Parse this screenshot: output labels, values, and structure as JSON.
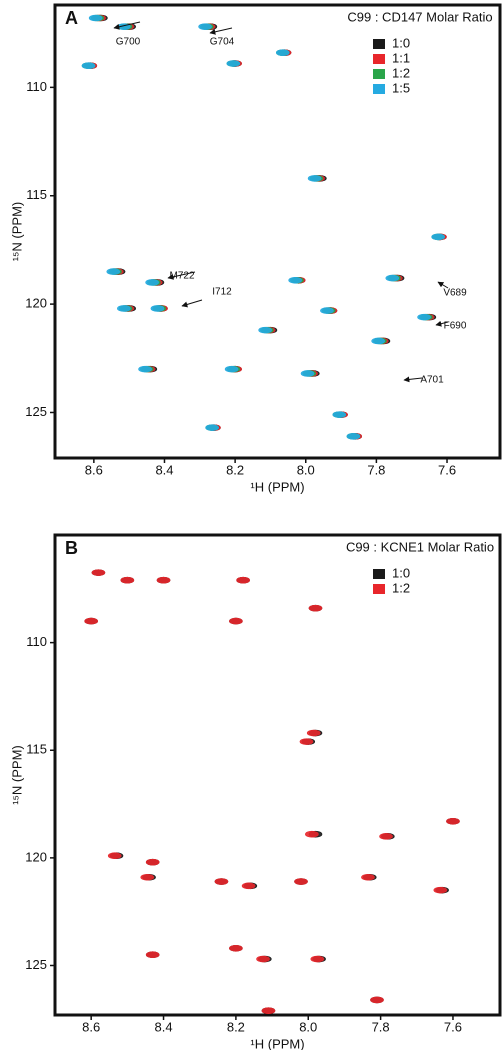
{
  "chart_data": [
    {
      "type": "scatter",
      "panel": "A",
      "legend_title": "C99 : CD147 Molar Ratio",
      "x_label": "¹H (PPM)",
      "y_label": "¹⁵N (PPM)",
      "x_reversed": true,
      "y_reversed": true,
      "xlim": [
        7.45,
        8.71
      ],
      "ylim": [
        106.2,
        127.1
      ],
      "xticks": [
        8.6,
        8.4,
        8.2,
        {
          "value": 8,
          "label": "8.0"
        },
        7.8,
        7.6
      ],
      "yticks": [
        110,
        115,
        120,
        125
      ],
      "annotations": [
        "G700",
        "G704",
        "M722",
        "I712",
        "V689",
        "F690",
        "A701"
      ],
      "series": [
        {
          "name": "1:0",
          "color": "#1a1a1a",
          "x": [
            8.58,
            8.5,
            8.27,
            8.2,
            8.61,
            8.06,
            7.96,
            7.62,
            8.53,
            8.42,
            8.5,
            8.41,
            8.44,
            8.2,
            7.98,
            8.26,
            7.9,
            7.86,
            8.02,
            7.74,
            7.65,
            7.78,
            7.93,
            8.1
          ],
          "y": [
            106.8,
            107.2,
            107.2,
            108.9,
            109.0,
            108.4,
            114.2,
            116.9,
            118.5,
            119.0,
            120.2,
            120.2,
            123.0,
            123.0,
            123.2,
            125.7,
            125.1,
            126.1,
            118.9,
            118.8,
            120.6,
            121.7,
            120.3,
            121.2
          ]
        },
        {
          "name": "1:1",
          "color": "#e8262b",
          "x": [
            8.585,
            8.505,
            8.275,
            8.2,
            8.61,
            8.06,
            7.965,
            7.62,
            8.535,
            8.425,
            8.505,
            8.41,
            8.445,
            8.2,
            7.985,
            8.26,
            7.9,
            7.86,
            8.02,
            7.745,
            7.655,
            7.785,
            7.93,
            8.105
          ],
          "y": [
            106.8,
            107.2,
            107.2,
            108.9,
            109.0,
            108.4,
            114.2,
            116.9,
            118.5,
            119.0,
            120.2,
            120.2,
            123.0,
            123.0,
            123.2,
            125.7,
            125.1,
            126.1,
            118.9,
            118.8,
            120.6,
            121.7,
            120.3,
            121.2
          ]
        },
        {
          "name": "1:2",
          "color": "#2aa54a",
          "x": [
            8.59,
            8.51,
            8.28,
            8.205,
            8.615,
            8.065,
            7.97,
            7.625,
            8.54,
            8.43,
            8.51,
            8.415,
            8.45,
            8.205,
            7.99,
            8.265,
            7.905,
            7.865,
            8.025,
            7.75,
            7.66,
            7.79,
            7.935,
            8.11
          ],
          "y": [
            106.8,
            107.2,
            107.2,
            108.9,
            109.0,
            108.4,
            114.2,
            116.9,
            118.5,
            119.0,
            120.2,
            120.2,
            123.0,
            123.0,
            123.2,
            125.7,
            125.1,
            126.1,
            118.9,
            118.8,
            120.6,
            121.7,
            120.3,
            121.2
          ]
        },
        {
          "name": "1:5",
          "color": "#25aae1",
          "x": [
            8.595,
            8.515,
            8.285,
            8.205,
            8.615,
            8.065,
            7.975,
            7.625,
            8.545,
            8.435,
            8.515,
            8.42,
            8.455,
            8.21,
            7.995,
            8.265,
            7.905,
            7.865,
            8.03,
            7.755,
            7.665,
            7.795,
            7.94,
            8.115
          ],
          "y": [
            106.8,
            107.2,
            107.2,
            108.9,
            109.0,
            108.4,
            114.2,
            116.9,
            118.5,
            119.0,
            120.2,
            120.2,
            123.0,
            123.0,
            123.2,
            125.7,
            125.1,
            126.1,
            118.9,
            118.8,
            120.6,
            121.7,
            120.3,
            121.2
          ]
        }
      ]
    },
    {
      "type": "scatter",
      "panel": "B",
      "legend_title": "C99 : KCNE1 Molar Ratio",
      "x_label": "¹H (PPM)",
      "y_label": "¹⁵N (PPM)",
      "x_reversed": true,
      "y_reversed": true,
      "xlim": [
        7.47,
        8.7
      ],
      "ylim": [
        105.0,
        127.3
      ],
      "xticks": [
        8.6,
        8.4,
        8.2,
        {
          "value": 8,
          "label": "8.0"
        },
        7.8,
        7.6
      ],
      "yticks": [
        110,
        115,
        120,
        125
      ],
      "series": [
        {
          "name": "1:0",
          "color": "#1a1a1a",
          "x": [
            8.58,
            8.5,
            8.6,
            8.4,
            8.18,
            8.2,
            7.98,
            7.98,
            8.0,
            7.98,
            7.78,
            7.6,
            8.53,
            8.43,
            8.44,
            8.24,
            8.16,
            8.02,
            7.83,
            7.63,
            8.43,
            8.2,
            8.12,
            7.97,
            7.81,
            8.11
          ],
          "y": [
            106.75,
            107.1,
            109.0,
            107.1,
            107.1,
            109.0,
            108.4,
            114.2,
            114.6,
            118.9,
            119.0,
            118.3,
            119.9,
            120.2,
            120.9,
            121.1,
            121.3,
            121.1,
            120.9,
            121.5,
            124.5,
            124.2,
            124.7,
            124.7,
            126.6,
            127.1
          ]
        },
        {
          "name": "1:2",
          "color": "#e8262b",
          "x": [
            8.58,
            8.5,
            8.6,
            8.4,
            8.18,
            8.2,
            7.98,
            7.985,
            8.005,
            7.99,
            7.785,
            7.6,
            8.535,
            8.43,
            8.445,
            8.24,
            8.165,
            8.02,
            7.835,
            7.635,
            8.43,
            8.2,
            8.125,
            7.975,
            7.81,
            8.11
          ],
          "y": [
            106.75,
            107.1,
            109.0,
            107.1,
            107.1,
            109.0,
            108.4,
            114.2,
            114.6,
            118.9,
            119.0,
            118.3,
            119.9,
            120.2,
            120.9,
            121.1,
            121.3,
            121.1,
            120.9,
            121.5,
            124.5,
            124.2,
            124.7,
            124.7,
            126.6,
            127.1
          ]
        }
      ]
    }
  ]
}
